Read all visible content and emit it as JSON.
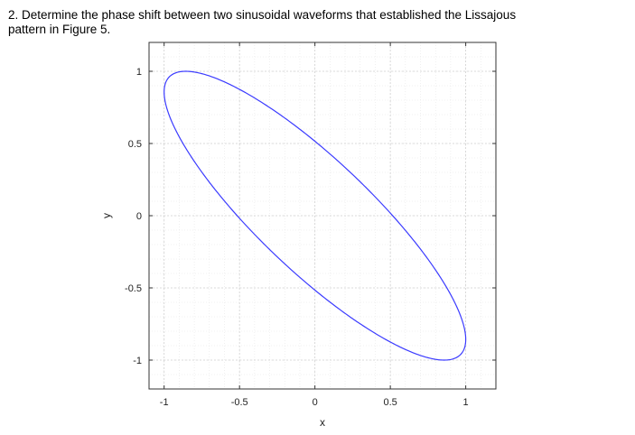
{
  "question": {
    "line1": "2. Determine the phase shift between two sinusoidal waveforms that established the Lissajous",
    "line2": "pattern in Figure 5."
  },
  "chart_data": {
    "type": "line",
    "xlabel": "x",
    "ylabel": "y",
    "xlim": [
      -1.1,
      1.2
    ],
    "ylim": [
      -1.2,
      1.2
    ],
    "xticks": [
      -1,
      -0.5,
      0,
      0.5,
      1
    ],
    "xtick_labels": [
      "-1",
      "-0.5",
      "0",
      "0.5",
      "1"
    ],
    "yticks": [
      -1,
      -0.5,
      0,
      0.5,
      1
    ],
    "ytick_labels": [
      "-1",
      "-0.5",
      "0",
      "0.5",
      "1"
    ],
    "grid": true,
    "minor_grid": true,
    "line_color": "#3b3bff",
    "curve": {
      "x": "sin(t)",
      "y": "sin(t + 2.6)",
      "phase_shift_rad": 2.6
    }
  }
}
